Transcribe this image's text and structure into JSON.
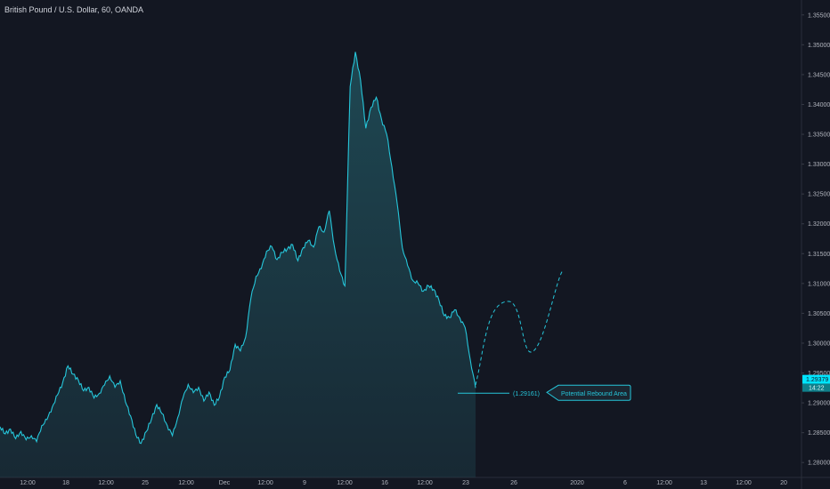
{
  "chart_data": {
    "type": "area",
    "title": "British Pound / U.S. Dollar, 60, OANDA",
    "ylim": [
      1.2775,
      1.3575
    ],
    "grid": false,
    "y_ticks": [
      "1.35500",
      "1.35000",
      "1.34500",
      "1.34000",
      "1.33500",
      "1.33000",
      "1.32500",
      "1.32000",
      "1.31500",
      "1.31000",
      "1.30500",
      "1.30000",
      "1.29500",
      "1.29000",
      "1.28500",
      "1.28000"
    ],
    "x_ticks": [
      "12:00",
      "18",
      "12:00",
      "25",
      "12:00",
      "Dec",
      "12:00",
      "9",
      "12:00",
      "16",
      "12:00",
      "23",
      "26",
      "2020",
      "6",
      "12:00",
      "13",
      "12:00",
      "20"
    ],
    "series": [
      {
        "values": [
          1.286,
          1.2848,
          1.2856,
          1.284,
          1.2852,
          1.2838,
          1.2845,
          1.2835,
          1.2862,
          1.2872,
          1.2893,
          1.2913,
          1.2934,
          1.2962,
          1.2948,
          1.2938,
          1.292,
          1.2926,
          1.2908,
          1.2916,
          1.293,
          1.2945,
          1.2926,
          1.2937,
          1.2902,
          1.2878,
          1.2846,
          1.2832,
          1.2852,
          1.2873,
          1.2897,
          1.2882,
          1.2862,
          1.2845,
          1.2875,
          1.2908,
          1.2931,
          1.2917,
          1.2926,
          1.2903,
          1.2918,
          1.2896,
          1.291,
          1.2943,
          1.2955,
          1.2998,
          1.2987,
          1.301,
          1.3075,
          1.3112,
          1.3125,
          1.3154,
          1.3162,
          1.314,
          1.3152,
          1.3158,
          1.3165,
          1.3138,
          1.316,
          1.3172,
          1.3161,
          1.3195,
          1.3186,
          1.3222,
          1.3161,
          1.3121,
          1.3096,
          1.343,
          1.3488,
          1.344,
          1.336,
          1.3395,
          1.3412,
          1.3375,
          1.335,
          1.3295,
          1.3234,
          1.316,
          1.313,
          1.3105,
          1.31,
          1.3087,
          1.3096,
          1.309,
          1.3072,
          1.3046,
          1.3043,
          1.3056,
          1.3042,
          1.3026,
          1.2972,
          1.2925
        ],
        "current_value": "1.29379",
        "countdown": "14:22"
      }
    ],
    "projection": {
      "values": [
        1.293,
        1.307,
        1.2985,
        1.3122
      ],
      "style": "dashed"
    },
    "annotations": {
      "level": "(1.29161)",
      "callout": "Potential Rebound Area"
    },
    "colors": {
      "background": "#131722",
      "line": "#26c6da",
      "fill": "#1f4a55",
      "text": "#b2b5be",
      "price_label_bg": "#00e5ff"
    }
  }
}
